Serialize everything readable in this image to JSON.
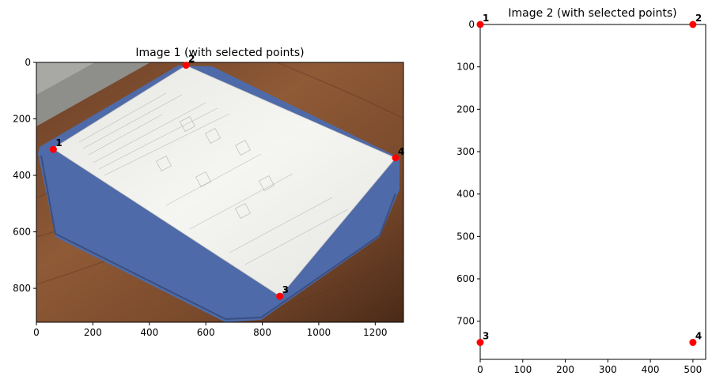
{
  "chart_data": [
    {
      "type": "scatter",
      "title": "Image 1 (with selected points)",
      "xlabel": "",
      "ylabel": "",
      "xlim": [
        0,
        1300
      ],
      "ylim": [
        920,
        0
      ],
      "xticks": [
        0,
        200,
        400,
        600,
        800,
        1000,
        1200
      ],
      "yticks": [
        0,
        200,
        400,
        600,
        800
      ],
      "grid": false,
      "background": "photo of a printed worksheet on a blue folder lying on a wooden table",
      "points": [
        {
          "label": "1",
          "x": 60,
          "y": 308
        },
        {
          "label": "2",
          "x": 530,
          "y": 10
        },
        {
          "label": "3",
          "x": 862,
          "y": 828
        },
        {
          "label": "4",
          "x": 1272,
          "y": 338
        }
      ]
    },
    {
      "type": "scatter",
      "title": "Image 2 (with selected points)",
      "xlabel": "",
      "ylabel": "",
      "xlim": [
        0,
        530
      ],
      "ylim": [
        790,
        0
      ],
      "xticks": [
        0,
        100,
        200,
        300,
        400,
        500
      ],
      "yticks": [
        0,
        100,
        200,
        300,
        400,
        500,
        600,
        700
      ],
      "grid": false,
      "background": "blank white image",
      "points": [
        {
          "label": "1",
          "x": 0,
          "y": 0
        },
        {
          "label": "2",
          "x": 500,
          "y": 0
        },
        {
          "label": "3",
          "x": 0,
          "y": 750
        },
        {
          "label": "4",
          "x": 500,
          "y": 750
        }
      ]
    }
  ],
  "colors": {
    "point": "#ff0000",
    "folder": "#4f6aa8",
    "paper": "#f2f2ee",
    "table_light": "#8f5a36",
    "table_dark": "#5a3320",
    "background_wall": "#9a9a95"
  }
}
